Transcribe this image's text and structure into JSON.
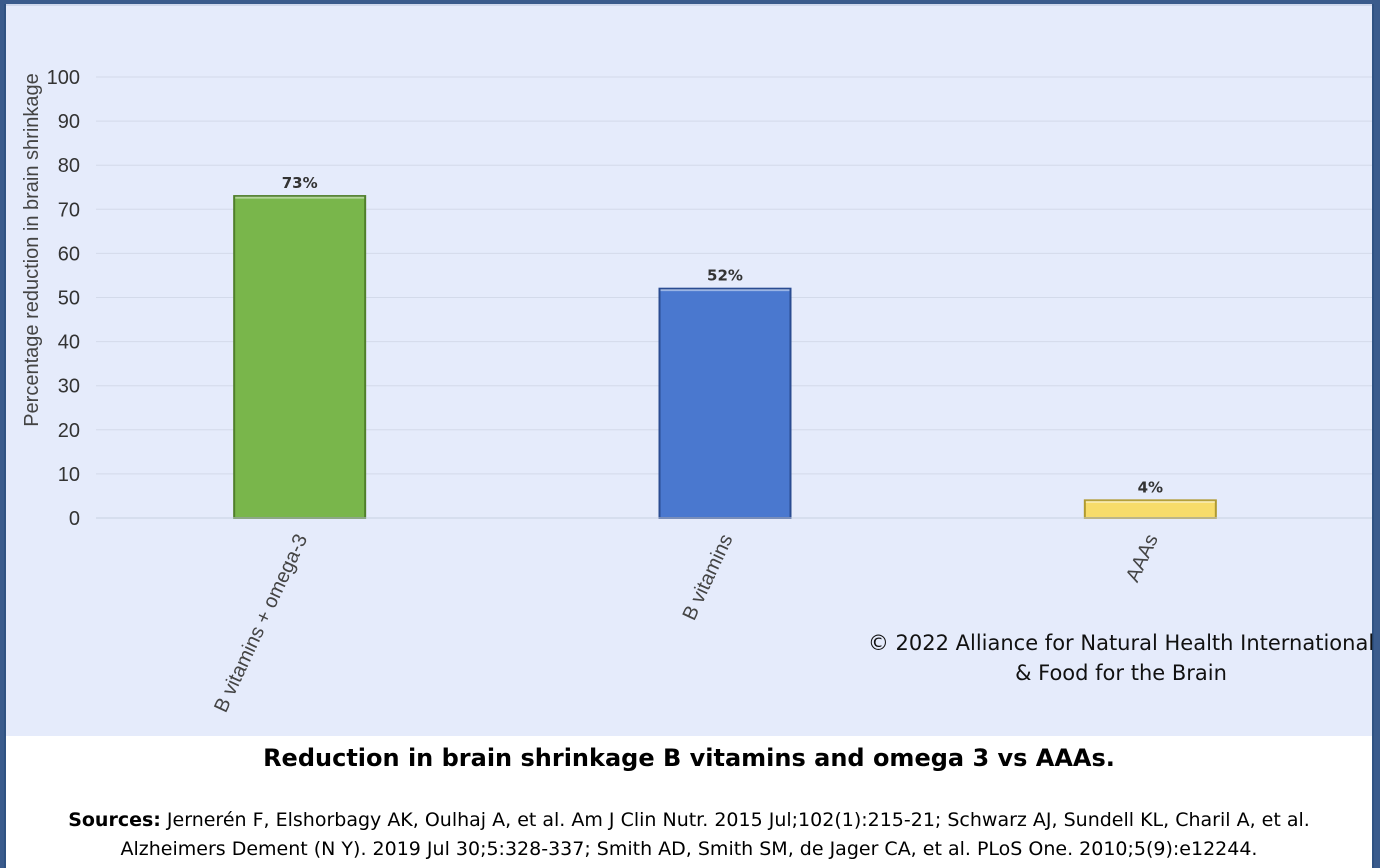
{
  "chart_data": {
    "type": "bar",
    "categories": [
      "B vitamins + omega-3",
      "B vitamins",
      "AAAs"
    ],
    "values": [
      73,
      52,
      4
    ],
    "data_labels": [
      "73%",
      "52%",
      "4%"
    ],
    "bar_colors": [
      "#79b64b",
      "#4a78cf",
      "#f7dc6a"
    ],
    "bar_edge_colors": [
      "#4f7f2a",
      "#2a4c92",
      "#b09a2f"
    ],
    "ylabel": "Percentage reduction in brain shrinkage",
    "ylim": [
      0,
      100
    ],
    "yticks": [
      0,
      10,
      20,
      30,
      40,
      50,
      60,
      70,
      80,
      90,
      100
    ],
    "grid": true
  },
  "copyright": {
    "line1": "© 2022 Alliance for Natural Health International",
    "line2": "& Food for the Brain"
  },
  "caption": "Reduction in brain shrinkage B vitamins and omega 3 vs AAAs.",
  "sources": {
    "label": "Sources:",
    "text": " Jernerén F, Elshorbagy AK, Oulhaj A, et al. Am J Clin Nutr. 2015 Jul;102(1):215-21; Schwarz AJ, Sundell KL, Charil A, et al. Alzheimers Dement (N Y). 2019 Jul 30;5:328-337; Smith AD, Smith SM, de Jager CA, et al. PLoS One. 2010;5(9):e12244."
  }
}
